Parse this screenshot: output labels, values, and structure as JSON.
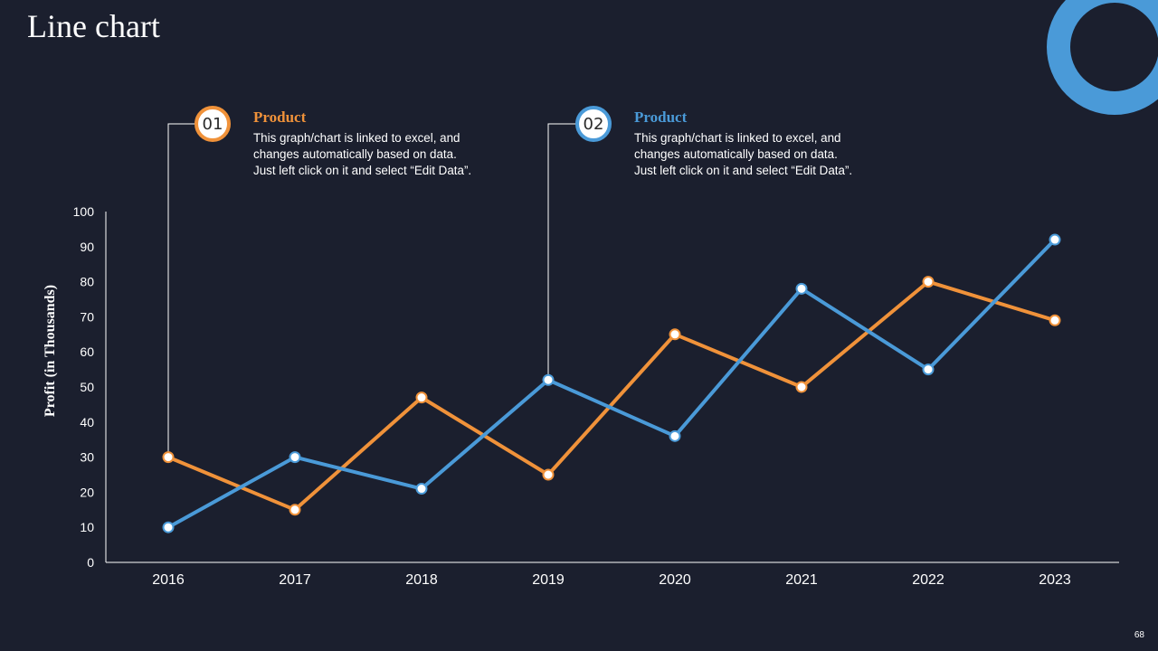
{
  "slide": {
    "title": "Line chart",
    "page_number": "68"
  },
  "callouts": [
    {
      "number": "01",
      "heading": "Product",
      "color": "#f0923a",
      "lines": [
        "This graph/chart is linked to excel, and",
        "changes automatically based on data.",
        "Just left click on it and select “Edit Data”."
      ]
    },
    {
      "number": "02",
      "heading": "Product",
      "color": "#4a9ad8",
      "lines": [
        "This graph/chart is linked to excel, and",
        "changes automatically based on data.",
        "Just left click on it and select “Edit Data”."
      ]
    }
  ],
  "colors": {
    "background": "#1b1f2e",
    "accent_blue": "#4a9ad8",
    "accent_orange": "#f0923a"
  },
  "chart_data": {
    "type": "line",
    "title": "",
    "xlabel": "",
    "ylabel": "Profit (in Thousands)",
    "ylim": [
      0,
      100
    ],
    "yticks": [
      0,
      10,
      20,
      30,
      40,
      50,
      60,
      70,
      80,
      90,
      100
    ],
    "categories": [
      "2016",
      "2017",
      "2018",
      "2019",
      "2020",
      "2021",
      "2022",
      "2023"
    ],
    "series": [
      {
        "name": "Product 01",
        "color": "#f0923a",
        "values": [
          30,
          15,
          47,
          25,
          65,
          50,
          80,
          69
        ]
      },
      {
        "name": "Product 02",
        "color": "#4a9ad8",
        "values": [
          10,
          30,
          21,
          52,
          36,
          78,
          55,
          92
        ]
      }
    ],
    "grid": false,
    "legend": "none"
  }
}
